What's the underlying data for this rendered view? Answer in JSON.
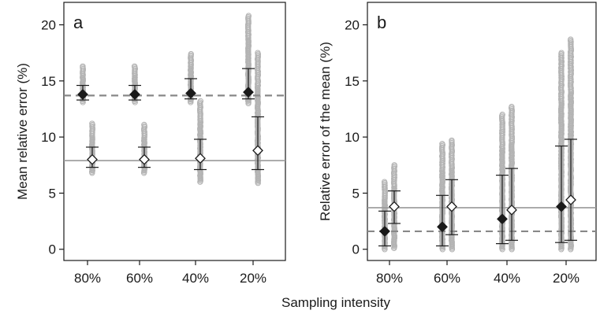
{
  "chart_data": {
    "type": "scatter",
    "xlabel": "Sampling intensity",
    "categories": [
      "80%",
      "60%",
      "40%",
      "20%"
    ],
    "colors": {
      "points": "#b3b3b3",
      "solid_line": "#9a9a9a",
      "dashed_line": "#888888",
      "whisker": "#1a1a1a",
      "filled_marker": "#1a1a1a",
      "open_marker": "#ffffff"
    },
    "panels": [
      {
        "panel_label": "a",
        "ylabel": "Mean relative error (%)",
        "ylim": [
          -1,
          22
        ],
        "yticks": [
          0,
          5,
          10,
          15,
          20
        ],
        "reference_lines": {
          "dashed": 13.7,
          "solid": 7.9
        },
        "series": [
          {
            "marker": "filled-diamond",
            "values": [
              13.8,
              13.8,
              13.9,
              14.0
            ],
            "inner_whisker": [
              [
                13.3,
                14.6
              ],
              [
                13.3,
                14.6
              ],
              [
                13.4,
                15.2
              ],
              [
                13.4,
                16.1
              ]
            ],
            "outer_range": [
              [
                13.1,
                16.3
              ],
              [
                13.1,
                16.3
              ],
              [
                13.1,
                17.4
              ],
              [
                13.0,
                20.8
              ]
            ]
          },
          {
            "marker": "open-diamond",
            "values": [
              8.0,
              8.0,
              8.1,
              8.8
            ],
            "inner_whisker": [
              [
                7.3,
                9.1
              ],
              [
                7.3,
                9.1
              ],
              [
                7.1,
                9.8
              ],
              [
                7.1,
                11.8
              ]
            ],
            "outer_range": [
              [
                6.8,
                11.2
              ],
              [
                6.8,
                11.1
              ],
              [
                6.0,
                13.2
              ],
              [
                5.9,
                17.5
              ]
            ]
          }
        ]
      },
      {
        "panel_label": "b",
        "ylabel": "Relative error of the mean (%)",
        "ylim": [
          -1,
          22
        ],
        "yticks": [
          0,
          5,
          10,
          15,
          20
        ],
        "reference_lines": {
          "dashed": 1.6,
          "solid": 3.7
        },
        "series": [
          {
            "marker": "filled-diamond",
            "values": [
              1.6,
              2.0,
              2.7,
              3.8
            ],
            "inner_whisker": [
              [
                0.3,
                3.4
              ],
              [
                0.3,
                4.8
              ],
              [
                0.5,
                6.6
              ],
              [
                0.6,
                9.2
              ]
            ],
            "outer_range": [
              [
                0.0,
                6.0
              ],
              [
                0.0,
                9.4
              ],
              [
                0.0,
                12.0
              ],
              [
                0.0,
                17.5
              ]
            ]
          },
          {
            "marker": "open-diamond",
            "values": [
              3.8,
              3.8,
              3.5,
              4.4
            ],
            "inner_whisker": [
              [
                2.3,
                5.2
              ],
              [
                1.3,
                6.2
              ],
              [
                0.8,
                7.2
              ],
              [
                0.8,
                9.8
              ]
            ],
            "outer_range": [
              [
                0.1,
                7.5
              ],
              [
                0.0,
                9.7
              ],
              [
                0.0,
                12.7
              ],
              [
                0.0,
                18.7
              ]
            ]
          }
        ]
      }
    ]
  }
}
